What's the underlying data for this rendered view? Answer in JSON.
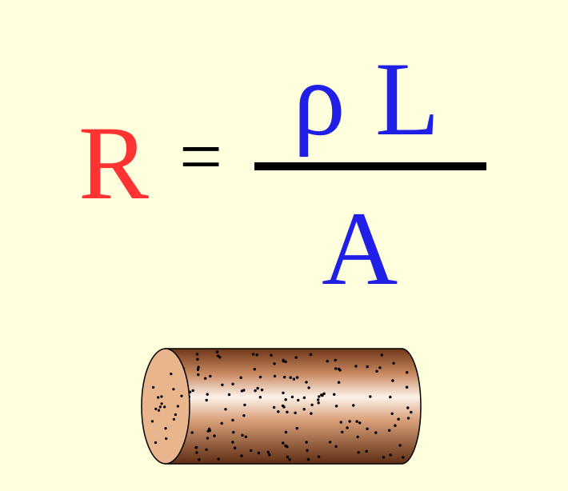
{
  "formula": {
    "lhs": "R",
    "equals": "=",
    "numerator": "ρ L",
    "denominator": "A"
  },
  "colors": {
    "background": "#ffffdd",
    "lhs": "#ff3333",
    "rhs": "#1f1fe6",
    "operator": "#000000",
    "cylinder_body_dark": "#7a3f1e",
    "cylinder_body_light": "#fdf2ea",
    "cylinder_end": "#e8b58d"
  },
  "illustration": {
    "name": "conductor-cylinder",
    "description_icon": "cylinder-wire-icon"
  }
}
